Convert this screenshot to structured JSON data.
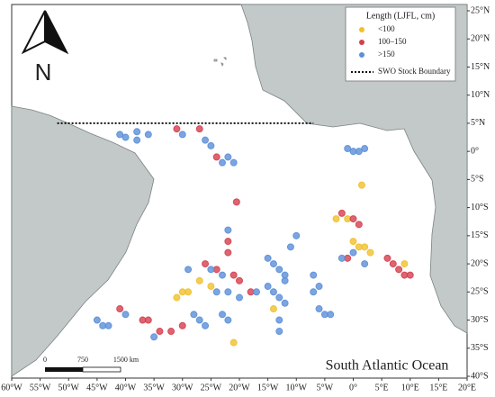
{
  "map": {
    "title": "South Atlantic Ocean",
    "north_label": "N",
    "legend": {
      "title": "Length (LJFL, cm)",
      "boundary_label": "SWO Stock Boundary"
    },
    "scale_bar": {
      "labels": [
        "0",
        "750",
        "1500 km"
      ]
    },
    "lon_ticks": [
      {
        "value": -60,
        "label": "60°W"
      },
      {
        "value": -55,
        "label": "55°W"
      },
      {
        "value": -50,
        "label": "50°W"
      },
      {
        "value": -45,
        "label": "45°W"
      },
      {
        "value": -40,
        "label": "40°W"
      },
      {
        "value": -35,
        "label": "35°W"
      },
      {
        "value": -30,
        "label": "30°W"
      },
      {
        "value": -25,
        "label": "25°W"
      },
      {
        "value": -20,
        "label": "20°W"
      },
      {
        "value": -15,
        "label": "15°W"
      },
      {
        "value": -10,
        "label": "10°W"
      },
      {
        "value": -5,
        "label": "5°W"
      },
      {
        "value": 0,
        "label": "0°"
      },
      {
        "value": 5,
        "label": "5°E"
      },
      {
        "value": 10,
        "label": "10°E"
      },
      {
        "value": 15,
        "label": "15°E"
      },
      {
        "value": 20,
        "label": "20°E"
      }
    ],
    "lat_ticks": [
      {
        "value": 25,
        "label": "25°N"
      },
      {
        "value": 20,
        "label": "20°N"
      },
      {
        "value": 15,
        "label": "15°N"
      },
      {
        "value": 10,
        "label": "10°N"
      },
      {
        "value": 5,
        "label": "5°N"
      },
      {
        "value": 0,
        "label": "0°"
      },
      {
        "value": -5,
        "label": "5°S"
      },
      {
        "value": -10,
        "label": "10°S"
      },
      {
        "value": -15,
        "label": "15°S"
      },
      {
        "value": -20,
        "label": "20°S"
      },
      {
        "value": -25,
        "label": "25°S"
      },
      {
        "value": -30,
        "label": "30°S"
      },
      {
        "value": -35,
        "label": "35°S"
      },
      {
        "value": -40,
        "label": "40°S"
      }
    ],
    "xlim": [
      -60,
      20
    ],
    "ylim": [
      -40,
      25
    ],
    "boundary": {
      "lat": 5,
      "lon": [
        -52,
        -7
      ]
    },
    "series": [
      {
        "name": "<100",
        "color": "#f0c02c",
        "lon": [
          1.5,
          0,
          1,
          2,
          -1,
          9,
          -27,
          -25,
          -30,
          -29,
          -31,
          -14,
          -21,
          -3,
          3
        ],
        "lat": [
          -6,
          -16,
          -17,
          -17,
          -12,
          -20,
          -23,
          -24,
          -25,
          -25,
          -26,
          -28,
          -34,
          -12,
          -18
        ]
      },
      {
        "name": "100–150",
        "color": "#d43f4e",
        "lon": [
          -31,
          -27,
          -24,
          -20.5,
          -2,
          0,
          1,
          6,
          7,
          8,
          9,
          10,
          -22,
          -22,
          -26,
          -24,
          -21,
          -20,
          -18,
          -30,
          -32,
          -34,
          -36,
          -37,
          -41,
          -1
        ],
        "lat": [
          4,
          4,
          -1,
          -9,
          -11,
          -12,
          -13,
          -19,
          -20,
          -21,
          -22,
          -22,
          -16,
          -18,
          -20,
          -21,
          -22,
          -23,
          -25,
          -31,
          -32,
          -32,
          -30,
          -30,
          -28,
          -19
        ]
      },
      {
        "name": ">150",
        "color": "#5b8fd8",
        "lon": [
          -41,
          -40,
          -38,
          -38,
          -36,
          -30,
          -26,
          -25,
          -23,
          -22,
          -21,
          -1,
          0,
          1,
          2,
          -2,
          0,
          2,
          -6,
          -7,
          -6,
          -5,
          -4,
          -7,
          -10,
          -11,
          -15,
          -14,
          -13,
          -12,
          -12,
          -15,
          -14,
          -13,
          -12,
          -13,
          -13,
          -22,
          -25,
          -23,
          -24,
          -22,
          -20,
          -17,
          -28,
          -27,
          -26,
          -35,
          -40,
          -45,
          -44,
          -43,
          -23,
          -22,
          -29
        ],
        "lat": [
          3,
          2.5,
          3.5,
          2,
          3,
          3,
          2,
          1,
          -2,
          -1,
          -2,
          0.5,
          0,
          0,
          0.5,
          -19,
          -18,
          -20,
          -24,
          -25,
          -28,
          -29,
          -29,
          -22,
          -15,
          -17,
          -19,
          -20,
          -21,
          -22,
          -23,
          -24,
          -25,
          -26,
          -27,
          -30,
          -32,
          -14,
          -21,
          -22,
          -25,
          -25,
          -26,
          -25,
          -29,
          -30,
          -31,
          -33,
          -29,
          -30,
          -31,
          -31,
          -29,
          -30,
          -21
        ]
      }
    ]
  }
}
